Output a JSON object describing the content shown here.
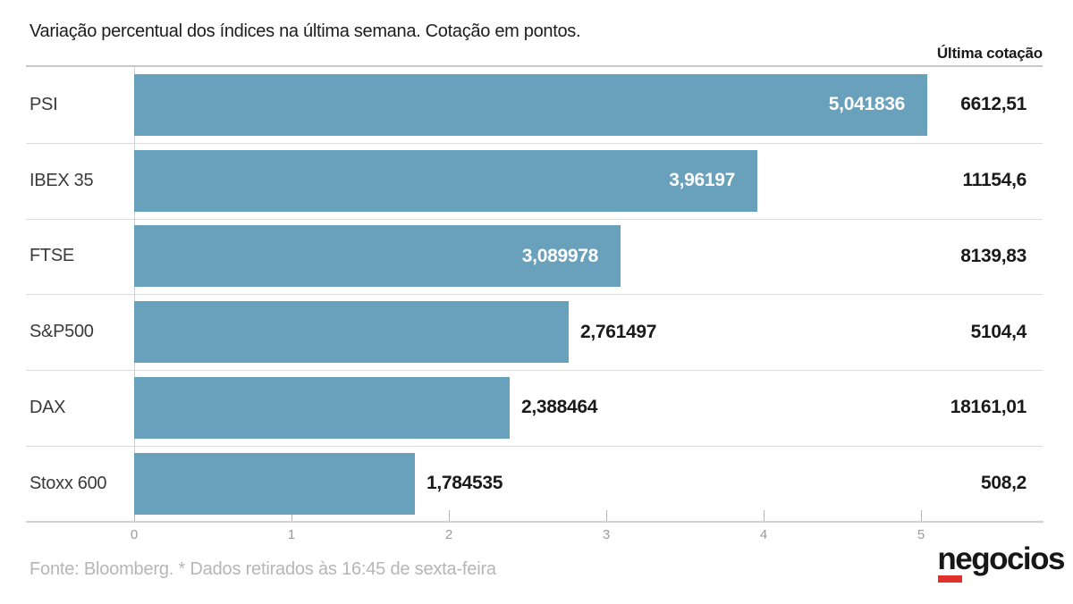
{
  "title": "Variação percentual dos índices na última semana. Cotação em pontos.",
  "quote_header": "Última cotação",
  "footer": "Fonte: Bloomberg.  * Dados retirados às 16:45 de sexta-feira",
  "logo_text": "negocios",
  "colors": {
    "bar": "#69a1bc",
    "logo_red": "#e2312a",
    "inside_value_text": "#ffffff",
    "value_text": "#1a1a1a",
    "footer_text": "#b6b6b6"
  },
  "chart_data": {
    "type": "bar",
    "orientation": "horizontal",
    "title": "Variação percentual dos índices na última semana. Cotação em pontos.",
    "categories": [
      "PSI",
      "IBEX 35",
      "FTSE",
      "S&P500",
      "DAX",
      "Stoxx 600"
    ],
    "values": [
      5.041836,
      3.96197,
      3.089978,
      2.761497,
      2.388464,
      1.784535
    ],
    "value_labels": [
      "5,041836",
      "3,96197",
      "3,089978",
      "2,761497",
      "2,388464",
      "1,784535"
    ],
    "quote_column_header": "Última cotação",
    "quotes": [
      "6612,51",
      "11154,6",
      "8139,83",
      "5104,4",
      "18161,01",
      "508,2"
    ],
    "x_ticks": [
      0,
      1,
      2,
      3,
      4,
      5
    ],
    "x_tick_labels": [
      "0",
      "1",
      "2",
      "3",
      "4",
      "5"
    ],
    "xlim": [
      0,
      5.75
    ],
    "grid": false,
    "legend": false,
    "source_note": "Fonte: Bloomberg.  * Dados retirados às 16:45 de sexta-feira"
  }
}
